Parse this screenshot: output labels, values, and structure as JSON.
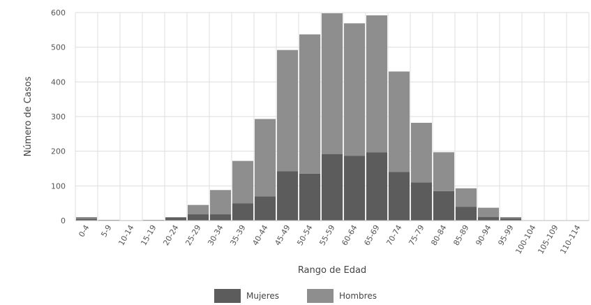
{
  "chart_data": {
    "type": "bar",
    "stacked": true,
    "categories": [
      "0-4",
      "5-9",
      "10-14",
      "15-19",
      "20-24",
      "25-29",
      "30-34",
      "35-39",
      "40-44",
      "45-49",
      "50-54",
      "55-59",
      "60-64",
      "65-69",
      "70-74",
      "75-79",
      "80-84",
      "85-89",
      "90-94",
      "95-99",
      "100-104",
      "105-109",
      "110-114"
    ],
    "series": [
      {
        "name": "Mujeres",
        "color": "#5c5c5c",
        "values": [
          5,
          1,
          0,
          1,
          8,
          18,
          18,
          50,
          70,
          142,
          135,
          192,
          187,
          197,
          140,
          110,
          85,
          40,
          10,
          6,
          0,
          0,
          0
        ]
      },
      {
        "name": "Hombres",
        "color": "#8e8e8e",
        "values": [
          5,
          1,
          0,
          1,
          2,
          27,
          70,
          122,
          223,
          350,
          402,
          406,
          382,
          395,
          290,
          172,
          112,
          53,
          27,
          4,
          1,
          0,
          0
        ]
      }
    ],
    "xlabel": "Rango de Edad",
    "ylabel": "Número de Casos",
    "ylim": [
      0,
      600
    ],
    "yticks": [
      0,
      100,
      200,
      300,
      400,
      500,
      600
    ],
    "grid": true,
    "legend_position": "bottom"
  }
}
